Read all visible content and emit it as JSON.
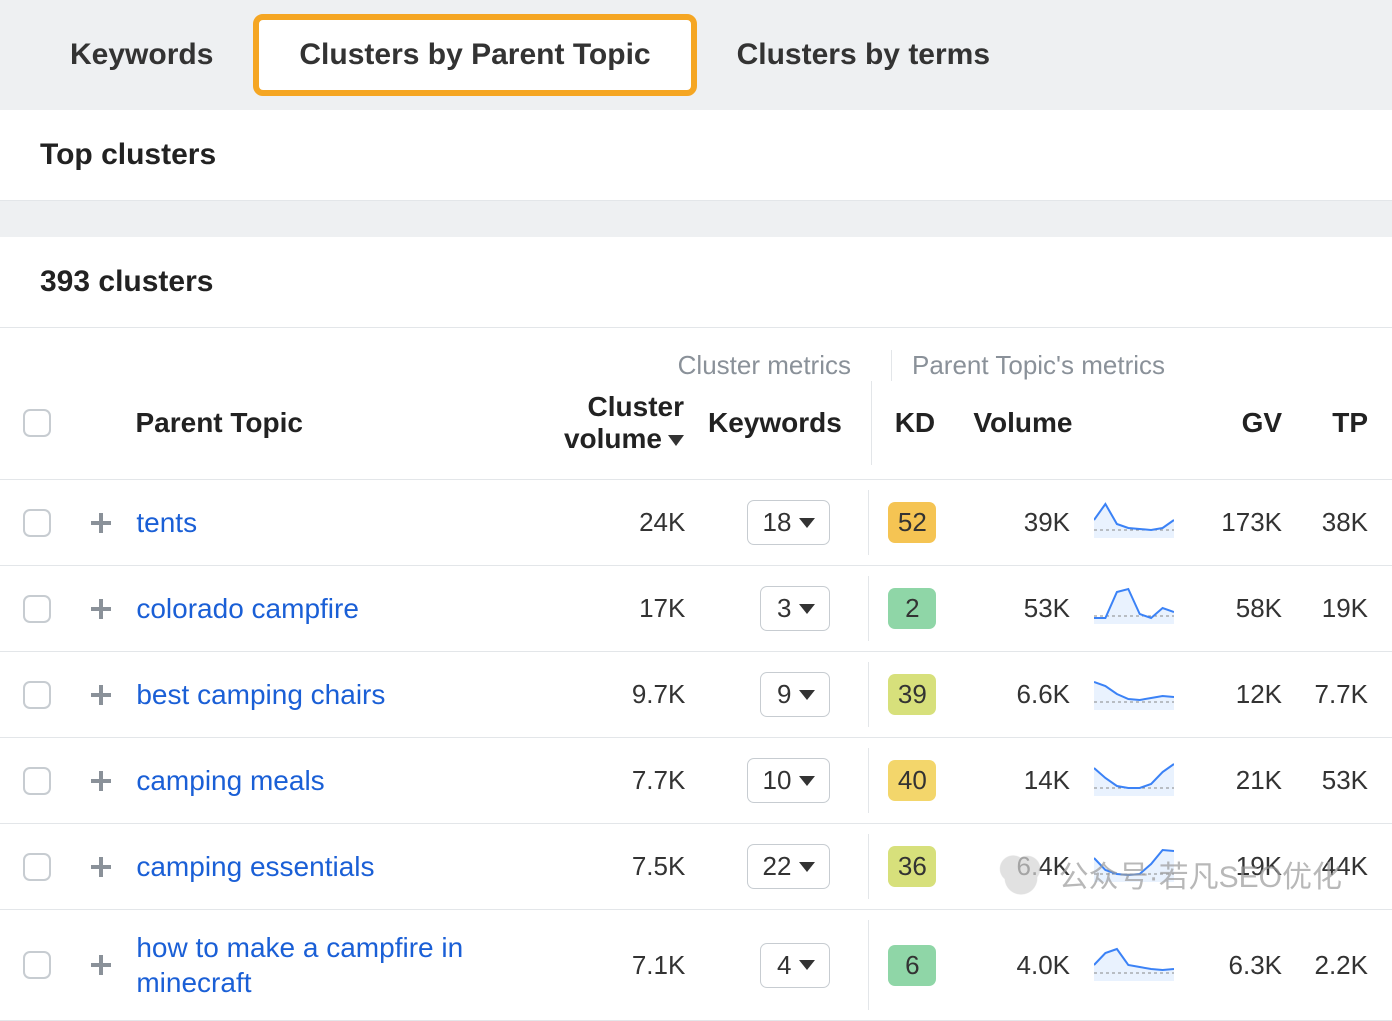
{
  "tabs": {
    "items": [
      {
        "label": "Keywords",
        "active": false
      },
      {
        "label": "Clusters by Parent Topic",
        "active": true
      },
      {
        "label": "Clusters by terms",
        "active": false
      }
    ]
  },
  "section_title": "Top clusters",
  "clusters_count_label": "393 clusters",
  "superheaders": {
    "left": "Cluster metrics",
    "right": "Parent Topic's metrics"
  },
  "columns": {
    "parent_topic": "Parent Topic",
    "cluster_volume": "Cluster volume",
    "keywords": "Keywords",
    "kd": "KD",
    "volume": "Volume",
    "gv": "GV",
    "tp": "TP"
  },
  "sort": {
    "column": "cluster_volume",
    "dir": "desc"
  },
  "kd_colors": {
    "green": "#8fd6a7",
    "lightgreen": "#b6dc8c",
    "yellowgreen": "#d7e07b",
    "yellow": "#f3d66b",
    "orange": "#f5c453"
  },
  "sparkline_style": {
    "stroke": "#3b82f6",
    "stroke_width": 2,
    "fill": "#dbeafe",
    "fill_opacity": 0.6,
    "baseline_color": "#888888",
    "baseline_dash": "3 3",
    "width": 80,
    "height": 38
  },
  "rows": [
    {
      "topic": "tents",
      "cluster_volume": "24K",
      "keywords": "18",
      "kd": "52",
      "kd_color": "#f5c453",
      "volume": "39K",
      "spark": [
        20,
        4,
        24,
        28,
        29,
        30,
        28,
        20
      ],
      "gv": "173K",
      "tp": "38K"
    },
    {
      "topic": "colorado campfire",
      "cluster_volume": "17K",
      "keywords": "3",
      "kd": "2",
      "kd_color": "#8fd6a7",
      "volume": "53K",
      "spark": [
        32,
        32,
        6,
        3,
        28,
        32,
        22,
        26
      ],
      "gv": "58K",
      "tp": "19K"
    },
    {
      "topic": "best camping chairs",
      "cluster_volume": "9.7K",
      "keywords": "9",
      "kd": "39",
      "kd_color": "#d7e07b",
      "volume": "6.6K",
      "spark": [
        10,
        14,
        22,
        27,
        28,
        26,
        24,
        25
      ],
      "gv": "12K",
      "tp": "7.7K"
    },
    {
      "topic": "camping meals",
      "cluster_volume": "7.7K",
      "keywords": "10",
      "kd": "40",
      "kd_color": "#f3d66b",
      "volume": "14K",
      "spark": [
        10,
        20,
        28,
        30,
        30,
        26,
        14,
        6
      ],
      "gv": "21K",
      "tp": "53K"
    },
    {
      "topic": "camping essentials",
      "cluster_volume": "7.5K",
      "keywords": "22",
      "kd": "36",
      "kd_color": "#d7e07b",
      "volume": "6.4K",
      "spark": [
        14,
        26,
        30,
        31,
        30,
        20,
        6,
        7
      ],
      "gv": "19K",
      "tp": "44K"
    },
    {
      "topic": "how to make a campfire in minecraft",
      "cluster_volume": "7.1K",
      "keywords": "4",
      "kd": "6",
      "kd_color": "#8fd6a7",
      "volume": "4.0K",
      "spark": [
        22,
        10,
        6,
        22,
        24,
        26,
        27,
        26
      ],
      "gv": "6.3K",
      "tp": "2.2K"
    }
  ],
  "watermark": "公众号·若凡SEO优化"
}
